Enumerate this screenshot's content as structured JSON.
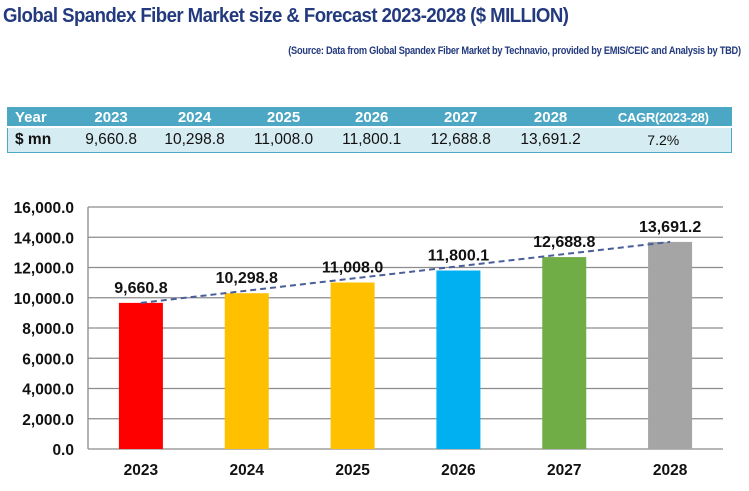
{
  "header": {
    "title": "Global Spandex Fiber Market size & Forecast 2023-2028 ($ MILLION)",
    "source": "(Source: Data from Global Spandex Fiber Market by Technavio, provided by EMIS/CEIC and Analysis by TBD)"
  },
  "table": {
    "header": [
      "Year",
      "2023",
      "2024",
      "2025",
      "2026",
      "2027",
      "2028",
      "CAGR(2023-28)"
    ],
    "row": [
      "$ mn",
      "9,660.8",
      "10,298.8",
      "11,008.0",
      "11,800.1",
      "12,688.8",
      "13,691.2",
      "7.2%"
    ],
    "colors": {
      "header_bg": "#4ba7c3",
      "row_bg": "#d6ecf3"
    }
  },
  "chart_data": {
    "type": "bar",
    "title": "Global Spandex Fiber Market size & Forecast 2023-2028 ($ MILLION)",
    "xlabel": "",
    "ylabel": "",
    "categories": [
      "2023",
      "2024",
      "2025",
      "2026",
      "2027",
      "2028"
    ],
    "values": [
      9660.8,
      10298.8,
      11008.0,
      11800.1,
      12688.8,
      13691.2
    ],
    "data_labels": [
      "9,660.8",
      "10,298.8",
      "11,008.0",
      "11,800.1",
      "12,688.8",
      "13,691.2"
    ],
    "bar_colors": [
      "#ff0000",
      "#ffc000",
      "#ffc000",
      "#00b0f0",
      "#70ad47",
      "#a5a5a5"
    ],
    "ylim": [
      0,
      16000
    ],
    "yticks": [
      0,
      2000,
      4000,
      6000,
      8000,
      10000,
      12000,
      14000,
      16000
    ],
    "ytick_labels": [
      "0.0",
      "2,000.0",
      "4,000.0",
      "6,000.0",
      "8,000.0",
      "10,000.0",
      "12,000.0",
      "14,000.0",
      "16,000.0"
    ],
    "grid": true,
    "legend": "none",
    "trendline": {
      "type": "dashed",
      "color": "#4a5f9a",
      "from": "2023",
      "to": "2028"
    }
  }
}
